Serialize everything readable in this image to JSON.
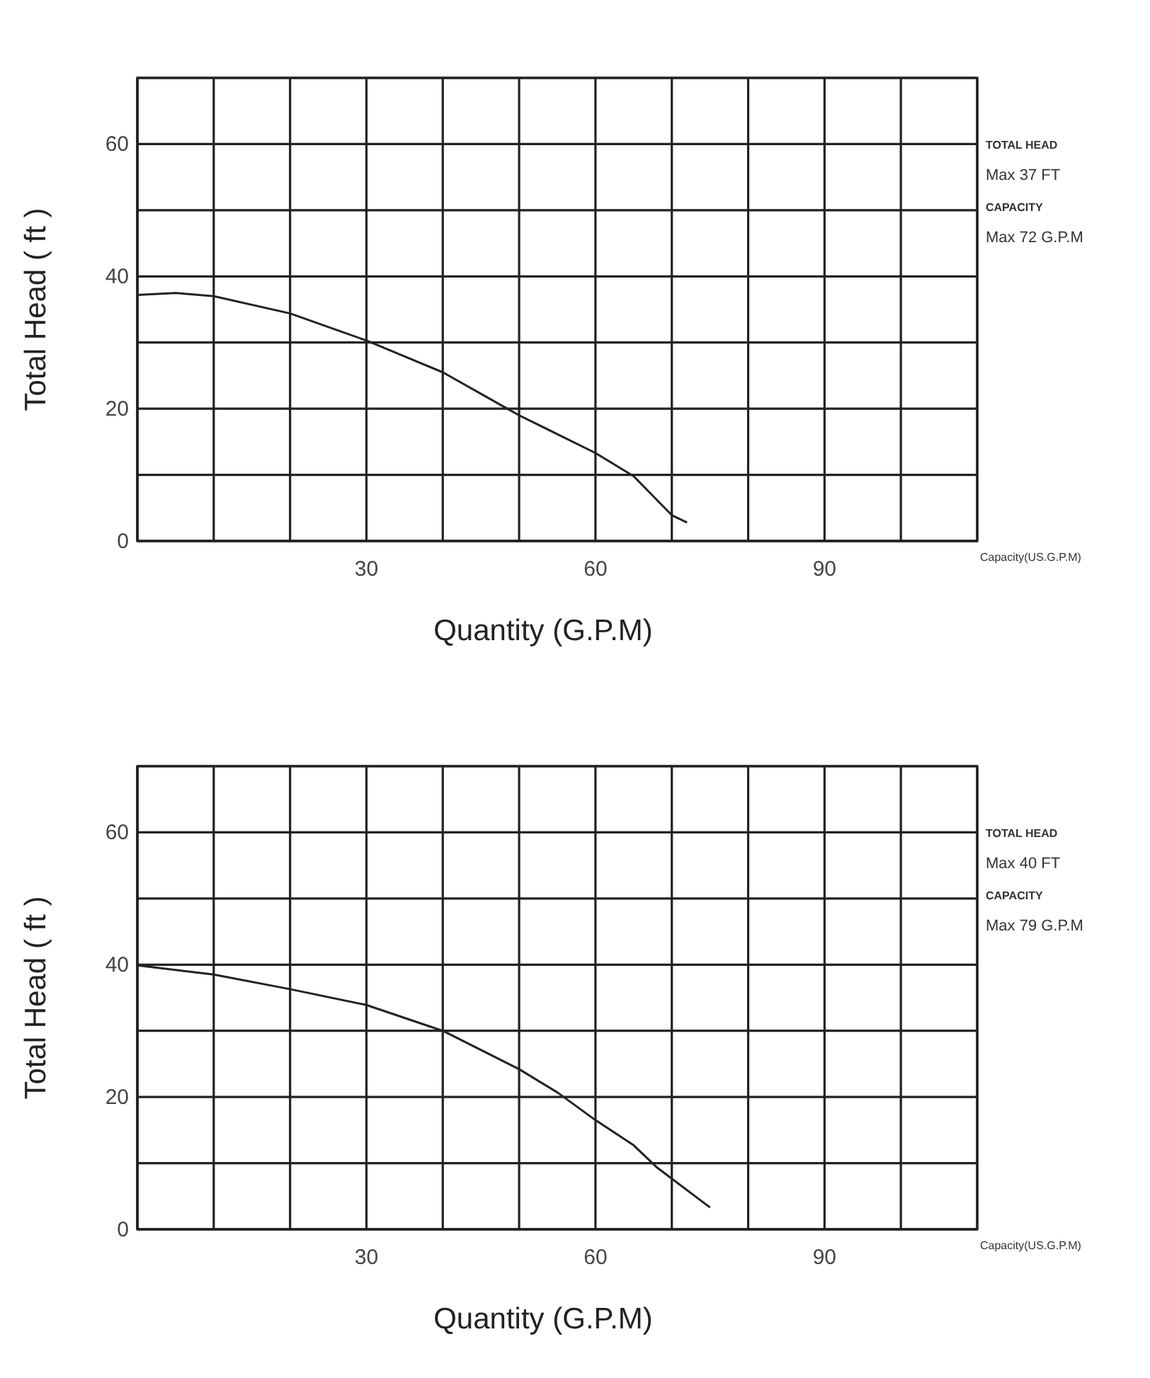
{
  "chart_data": [
    {
      "type": "line",
      "xlabel": "Quantity (G.P.M)",
      "ylabel": "Total Head ( ft )",
      "annotations": [
        "TOTAL HEAD",
        "Max 37 FT",
        "CAPACITY",
        "Max 72 G.P.M",
        "Capacity(US.G.P.M)"
      ],
      "xlim": [
        0,
        110
      ],
      "ylim": [
        0,
        70
      ],
      "xticks": [
        {
          "value": 0,
          "label": null
        },
        {
          "value": 10,
          "label": null
        },
        {
          "value": 20,
          "label": null
        },
        30,
        {
          "value": 40,
          "label": null
        },
        {
          "value": 50,
          "label": null
        },
        60,
        {
          "value": 70,
          "label": null
        },
        {
          "value": 80,
          "label": null
        },
        90,
        {
          "value": 100,
          "label": null
        },
        {
          "value": 110,
          "label": null
        }
      ],
      "yticks": [
        0,
        {
          "value": 10,
          "label": null
        },
        20,
        {
          "value": 30,
          "label": null
        },
        40,
        {
          "value": 50,
          "label": null
        },
        60,
        {
          "value": 70,
          "label": null
        }
      ],
      "grid": true,
      "marker": "none",
      "line_style": "solid",
      "series": [
        {
          "color": "#222222",
          "x": [
            0,
            5,
            10,
            20,
            30,
            40,
            48,
            50,
            60,
            65,
            70,
            72
          ],
          "values": [
            37.2,
            37.5,
            37,
            34.4,
            30.3,
            25.5,
            20.3,
            19,
            13.3,
            9.8,
            3.9,
            2.8
          ]
        }
      ]
    },
    {
      "type": "line",
      "xlabel": "Quantity (G.P.M)",
      "ylabel": "Total Head ( ft )",
      "annotations": [
        "TOTAL HEAD",
        "Max 40 FT",
        "CAPACITY",
        "Max 79 G.P.M",
        "Capacity(US.G.P.M)"
      ],
      "xlim": [
        0,
        110
      ],
      "ylim": [
        0,
        70
      ],
      "xticks": [
        {
          "value": 0,
          "label": null
        },
        {
          "value": 10,
          "label": null
        },
        {
          "value": 20,
          "label": null
        },
        30,
        {
          "value": 40,
          "label": null
        },
        {
          "value": 50,
          "label": null
        },
        60,
        {
          "value": 70,
          "label": null
        },
        {
          "value": 80,
          "label": null
        },
        90,
        {
          "value": 100,
          "label": null
        },
        {
          "value": 110,
          "label": null
        }
      ],
      "yticks": [
        0,
        {
          "value": 10,
          "label": null
        },
        20,
        {
          "value": 30,
          "label": null
        },
        40,
        {
          "value": 50,
          "label": null
        },
        60,
        {
          "value": 70,
          "label": null
        }
      ],
      "grid": true,
      "marker": "none",
      "line_style": "solid",
      "series": [
        {
          "color": "#222222",
          "x": [
            0,
            10,
            20,
            30,
            40,
            50,
            55,
            60,
            65,
            68,
            75
          ],
          "values": [
            39.9,
            38.5,
            36.3,
            33.9,
            30,
            24.2,
            20.7,
            16.5,
            12.7,
            9.4,
            3.3
          ]
        }
      ]
    }
  ]
}
